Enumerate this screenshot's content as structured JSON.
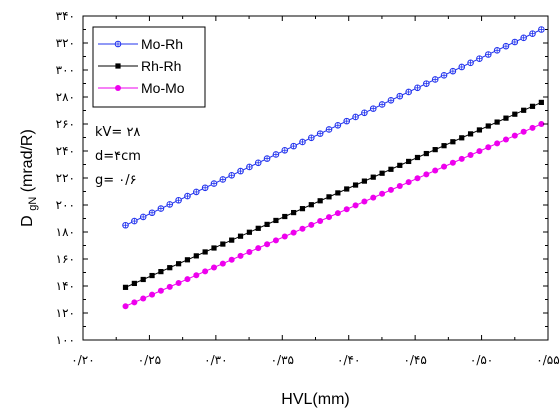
{
  "chart_data": {
    "type": "line",
    "xlabel": "HVL(mm)",
    "ylabel_main": "D",
    "ylabel_sub": "gN",
    "ylabel_rest": "(mrad/R)",
    "xlim": [
      0.2,
      0.55
    ],
    "ylim": [
      100,
      340
    ],
    "x_ticks": [
      {
        "value": 0.2,
        "label": "۰/۲۰"
      },
      {
        "value": 0.25,
        "label": "۰/۲۵"
      },
      {
        "value": 0.3,
        "label": "۰/۳۰"
      },
      {
        "value": 0.35,
        "label": "۰/۳۵"
      },
      {
        "value": 0.4,
        "label": "۰/۴۰"
      },
      {
        "value": 0.45,
        "label": "۰/۴۵"
      },
      {
        "value": 0.5,
        "label": "۰/۵۰"
      },
      {
        "value": 0.55,
        "label": "۰/۵۵"
      }
    ],
    "y_ticks": [
      {
        "value": 100,
        "label": "۱۰۰"
      },
      {
        "value": 120,
        "label": "۱۲۰"
      },
      {
        "value": 140,
        "label": "۱۴۰"
      },
      {
        "value": 160,
        "label": "۱۶۰"
      },
      {
        "value": 180,
        "label": "۱۸۰"
      },
      {
        "value": 200,
        "label": "۲۰۰"
      },
      {
        "value": 220,
        "label": "۲۲۰"
      },
      {
        "value": 240,
        "label": "۲۴۰"
      },
      {
        "value": 260,
        "label": "۲۶۰"
      },
      {
        "value": 280,
        "label": "۲۸۰"
      },
      {
        "value": 300,
        "label": "۳۰۰"
      },
      {
        "value": 320,
        "label": "۳۲۰"
      },
      {
        "value": 340,
        "label": "۳۴۰"
      }
    ],
    "x_start": 0.232,
    "x_end": 0.545,
    "num_points": 48,
    "series": [
      {
        "name": "Mo-Rh",
        "y_start": 185,
        "y_end": 330,
        "color": "#2233ee",
        "marker": "crossed-circle"
      },
      {
        "name": "Rh-Rh",
        "y_start": 139,
        "y_end": 276,
        "color": "#000000",
        "marker": "square"
      },
      {
        "name": "Mo-Mo",
        "y_start": 125,
        "y_end": 260,
        "color": "#ee00ee",
        "marker": "filled-circle"
      }
    ],
    "legend_position": "top-left",
    "annotations": [
      "kV= ۲۸",
      "d=۴cm",
      "g= ۰/۶"
    ]
  }
}
